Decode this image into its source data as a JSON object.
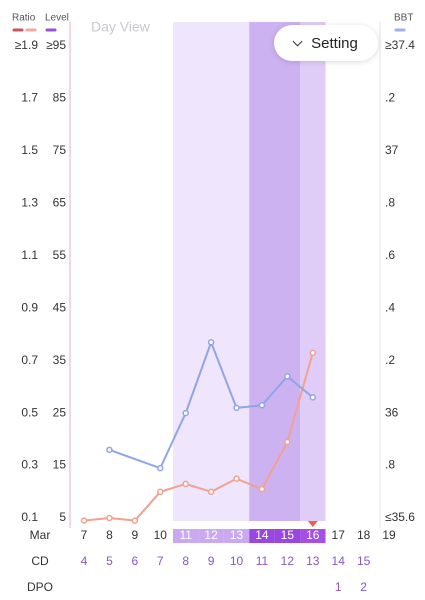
{
  "header": {
    "view_label": "Day View",
    "setting_button": "Setting"
  },
  "chart_data": {
    "type": "line",
    "legend": [
      {
        "name": "Ratio",
        "colors": [
          "#c9545a",
          "#f2a99c"
        ]
      },
      {
        "name": "Level",
        "colors": [
          "#9b4fd6"
        ]
      },
      {
        "name": "BBT",
        "colors": [
          "#9fb0e8"
        ]
      }
    ],
    "ylim": [
      0.1,
      1.9
    ],
    "yticks": [
      0.1,
      0.3,
      0.5,
      0.7,
      0.9,
      1.1,
      1.3,
      1.5,
      1.7,
      {
        "value": 1.9,
        "label": "≥1.9"
      }
    ],
    "level_lim": [
      5,
      95
    ],
    "level_ticks": [
      5,
      15,
      25,
      35,
      45,
      55,
      65,
      75,
      85,
      {
        "value": 95,
        "label": "≥95"
      }
    ],
    "y2lim": [
      35.6,
      37.4
    ],
    "y2ticks": [
      {
        "value": 35.6,
        "label": "≤35.6"
      },
      {
        "value": 35.8,
        "label": ".8"
      },
      36,
      {
        "value": 36.2,
        "label": ".2"
      },
      {
        "value": 36.4,
        "label": ".4"
      },
      {
        "value": 36.6,
        "label": ".6"
      },
      {
        "value": 36.8,
        "label": ".8"
      },
      37,
      {
        "value": 37.2,
        "label": ".2"
      },
      {
        "value": 37.4,
        "label": "≥37.4"
      }
    ],
    "row_labels": [
      "Mar",
      "CD",
      "DPO"
    ],
    "x": [
      7,
      8,
      9,
      10,
      11,
      12,
      13,
      14,
      15,
      16,
      17,
      18,
      19
    ],
    "cd": [
      4,
      5,
      6,
      7,
      8,
      9,
      10,
      11,
      12,
      13,
      14,
      15,
      null
    ],
    "dpo": [
      null,
      null,
      null,
      null,
      null,
      null,
      null,
      null,
      null,
      null,
      1,
      2,
      null
    ],
    "bands": [
      {
        "start": 11,
        "end": 16,
        "color": "#efe5fc",
        "pill": "#caa9f0"
      },
      {
        "start": 14,
        "end": 15,
        "color": "#cdb2f1",
        "pill": "#9a47e0"
      },
      {
        "start": 16,
        "end": 16,
        "color": "#dfcdf7",
        "pill": "#a44fe6"
      }
    ],
    "today": 16,
    "series": [
      {
        "color": "#f2a18f",
        "x": [
          7,
          8,
          9,
          10,
          11,
          12,
          13,
          14,
          15,
          16
        ],
        "values": [
          0.09,
          0.1,
          0.09,
          0.2,
          0.23,
          0.2,
          0.25,
          0.21,
          0.39,
          0.73
        ]
      },
      {
        "color": "#8fa5e6",
        "axis": "y2",
        "x": [
          8,
          10,
          11,
          12,
          13,
          14,
          15,
          16
        ],
        "values": [
          35.86,
          35.79,
          36.0,
          36.27,
          36.02,
          36.03,
          36.14,
          36.06
        ]
      }
    ]
  }
}
